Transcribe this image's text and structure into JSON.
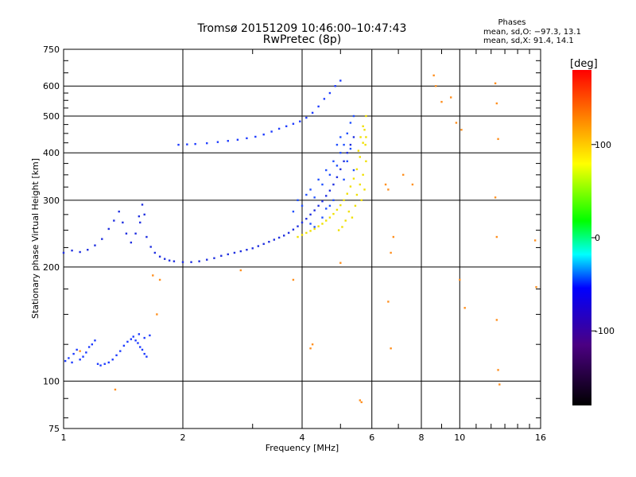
{
  "chart_data": {
    "type": "scatter",
    "title": "Tromsø 20151209 10:46:00–10:47:43",
    "subtitle": "RwPretec (8p)",
    "xlabel": "Frequency [MHz]",
    "ylabel": "Stationary phase Virtual Height [km]",
    "x_scale": "log",
    "y_scale": "log",
    "xlim": [
      1,
      16
    ],
    "ylim": [
      75,
      750
    ],
    "x_ticks": [
      1,
      2,
      4,
      6,
      8,
      10,
      16
    ],
    "y_ticks": [
      75,
      100,
      200,
      300,
      400,
      500,
      600,
      750
    ],
    "grid": true,
    "phases_box": {
      "heading": "Phases",
      "line_o": "mean, sd,O: −97.3, 13.1",
      "line_x": "mean, sd,X:  91.4, 14.1"
    },
    "colorbar": {
      "label": "[deg]",
      "ticks": [
        100,
        0,
        -100
      ],
      "range": [
        -180,
        180
      ],
      "colors": [
        "#000000",
        "#4b0082",
        "#0000ff",
        "#00ffff",
        "#00ff00",
        "#ffff00",
        "#ff8000",
        "#ff0000"
      ]
    },
    "series": [
      {
        "trace": "low-trace",
        "color": "#1e3cff",
        "points": [
          [
            1.01,
            113
          ],
          [
            1.03,
            115
          ],
          [
            1.05,
            112
          ],
          [
            1.06,
            118
          ],
          [
            1.08,
            121
          ],
          [
            1.1,
            114
          ],
          [
            1.12,
            116
          ],
          [
            1.14,
            119
          ],
          [
            1.16,
            123
          ],
          [
            1.18,
            125
          ],
          [
            1.2,
            128
          ],
          [
            1.22,
            111
          ],
          [
            1.24,
            110
          ],
          [
            1.27,
            111
          ],
          [
            1.3,
            112
          ],
          [
            1.33,
            114
          ],
          [
            1.36,
            117
          ],
          [
            1.39,
            120
          ],
          [
            1.42,
            124
          ],
          [
            1.45,
            127
          ],
          [
            1.48,
            129
          ],
          [
            1.5,
            131
          ],
          [
            1.52,
            128
          ],
          [
            1.54,
            126
          ],
          [
            1.56,
            123
          ],
          [
            1.58,
            121
          ],
          [
            1.6,
            118
          ],
          [
            1.62,
            116
          ],
          [
            1.55,
            133
          ],
          [
            1.6,
            130
          ],
          [
            1.65,
            132
          ]
        ]
      },
      {
        "trace": "f-trace",
        "color": "#2030e0",
        "points": [
          [
            1.0,
            218
          ],
          [
            1.05,
            221
          ],
          [
            1.1,
            219
          ],
          [
            1.15,
            222
          ],
          [
            1.2,
            228
          ],
          [
            1.25,
            237
          ],
          [
            1.3,
            252
          ],
          [
            1.34,
            265
          ],
          [
            1.38,
            280
          ],
          [
            1.41,
            262
          ],
          [
            1.44,
            245
          ],
          [
            1.48,
            232
          ],
          [
            1.52,
            245
          ],
          [
            1.56,
            262
          ],
          [
            1.6,
            275
          ],
          [
            1.58,
            292
          ],
          [
            1.55,
            272
          ],
          [
            1.62,
            240
          ],
          [
            1.66,
            226
          ],
          [
            1.7,
            218
          ],
          [
            1.75,
            213
          ],
          [
            1.8,
            210
          ],
          [
            1.85,
            208
          ],
          [
            1.9,
            207
          ],
          [
            2.0,
            206
          ],
          [
            2.1,
            206
          ],
          [
            2.2,
            207
          ],
          [
            2.3,
            209
          ],
          [
            2.4,
            211
          ],
          [
            2.5,
            214
          ],
          [
            2.6,
            216
          ],
          [
            2.7,
            218
          ],
          [
            2.8,
            220
          ],
          [
            2.9,
            222
          ],
          [
            3.0,
            224
          ],
          [
            3.1,
            227
          ],
          [
            3.2,
            230
          ],
          [
            3.3,
            233
          ],
          [
            3.4,
            236
          ],
          [
            3.5,
            239
          ],
          [
            3.6,
            242
          ],
          [
            3.7,
            246
          ],
          [
            3.8,
            251
          ],
          [
            3.9,
            256
          ],
          [
            4.0,
            262
          ],
          [
            4.1,
            268
          ],
          [
            4.2,
            275
          ],
          [
            4.3,
            282
          ],
          [
            4.4,
            290
          ],
          [
            4.5,
            298
          ],
          [
            4.6,
            308
          ],
          [
            4.7,
            318
          ],
          [
            4.8,
            330
          ],
          [
            4.9,
            345
          ],
          [
            5.0,
            362
          ],
          [
            5.1,
            380
          ],
          [
            5.2,
            400
          ],
          [
            5.3,
            420
          ],
          [
            5.4,
            440
          ]
        ]
      },
      {
        "trace": "f-spread",
        "color": "#2050ff",
        "points": [
          [
            3.8,
            280
          ],
          [
            3.9,
            300
          ],
          [
            4.0,
            290
          ],
          [
            4.1,
            310
          ],
          [
            4.2,
            320
          ],
          [
            4.3,
            305
          ],
          [
            4.4,
            340
          ],
          [
            4.5,
            330
          ],
          [
            4.6,
            360
          ],
          [
            4.7,
            350
          ],
          [
            4.8,
            380
          ],
          [
            4.9,
            370
          ],
          [
            5.0,
            400
          ],
          [
            5.1,
            420
          ],
          [
            5.2,
            450
          ],
          [
            5.3,
            480
          ],
          [
            5.4,
            500
          ],
          [
            4.5,
            270
          ],
          [
            4.6,
            285
          ],
          [
            4.2,
            260
          ],
          [
            4.3,
            255
          ],
          [
            4.9,
            420
          ],
          [
            5.0,
            440
          ],
          [
            5.2,
            380
          ],
          [
            5.1,
            340
          ],
          [
            4.8,
            300
          ],
          [
            4.7,
            290
          ],
          [
            5.3,
            410
          ],
          [
            5.4,
            360
          ]
        ]
      },
      {
        "trace": "f-trace-upper",
        "color": "#1e3cff",
        "points": [
          [
            1.95,
            420
          ],
          [
            2.05,
            421
          ],
          [
            2.15,
            422
          ],
          [
            2.3,
            424
          ],
          [
            2.45,
            427
          ],
          [
            2.6,
            430
          ],
          [
            2.75,
            433
          ],
          [
            2.9,
            437
          ],
          [
            3.05,
            441
          ],
          [
            3.2,
            447
          ],
          [
            3.35,
            455
          ],
          [
            3.5,
            463
          ],
          [
            3.65,
            470
          ],
          [
            3.8,
            477
          ],
          [
            3.95,
            484
          ],
          [
            4.1,
            495
          ],
          [
            4.25,
            510
          ],
          [
            4.4,
            530
          ],
          [
            4.55,
            555
          ],
          [
            4.7,
            575
          ],
          [
            4.85,
            600
          ],
          [
            5.0,
            620
          ]
        ]
      },
      {
        "trace": "x-trace",
        "color": "#f0e000",
        "points": [
          [
            3.9,
            240
          ],
          [
            4.0,
            243
          ],
          [
            4.1,
            246
          ],
          [
            4.2,
            249
          ],
          [
            4.3,
            252
          ],
          [
            4.4,
            256
          ],
          [
            4.5,
            260
          ],
          [
            4.6,
            265
          ],
          [
            4.7,
            270
          ],
          [
            4.8,
            276
          ],
          [
            4.9,
            283
          ],
          [
            5.0,
            291
          ],
          [
            5.1,
            300
          ],
          [
            5.2,
            312
          ],
          [
            5.3,
            326
          ],
          [
            5.4,
            342
          ],
          [
            5.5,
            362
          ],
          [
            5.6,
            390
          ],
          [
            5.7,
            425
          ],
          [
            5.75,
            460
          ],
          [
            5.8,
            500
          ],
          [
            5.5,
            310
          ],
          [
            5.6,
            330
          ],
          [
            5.7,
            350
          ],
          [
            5.8,
            380
          ],
          [
            5.65,
            300
          ],
          [
            5.75,
            320
          ],
          [
            5.45,
            290
          ],
          [
            5.35,
            270
          ],
          [
            5.25,
            280
          ],
          [
            5.15,
            265
          ],
          [
            5.05,
            255
          ],
          [
            4.95,
            250
          ],
          [
            5.55,
            405
          ],
          [
            5.62,
            440
          ],
          [
            5.7,
            470
          ],
          [
            5.78,
            420
          ],
          [
            5.8,
            440
          ]
        ]
      },
      {
        "trace": "scatter-mixed",
        "color": "#ff9020",
        "points": [
          [
            6.5,
            330
          ],
          [
            6.6,
            320
          ],
          [
            6.7,
            218
          ],
          [
            6.8,
            240
          ],
          [
            7.2,
            350
          ],
          [
            7.6,
            330
          ],
          [
            8.6,
            640
          ],
          [
            8.7,
            600
          ],
          [
            9.0,
            545
          ],
          [
            9.5,
            560
          ],
          [
            9.8,
            480
          ],
          [
            10.1,
            460
          ],
          [
            12.3,
            610
          ],
          [
            12.4,
            540
          ],
          [
            12.5,
            435
          ],
          [
            12.3,
            305
          ],
          [
            12.4,
            240
          ],
          [
            10.0,
            185
          ],
          [
            10.3,
            156
          ],
          [
            12.4,
            145
          ],
          [
            12.5,
            107
          ],
          [
            12.6,
            98
          ],
          [
            15.5,
            235
          ],
          [
            15.6,
            177
          ],
          [
            6.6,
            162
          ],
          [
            6.7,
            122
          ],
          [
            5.6,
            89
          ],
          [
            5.65,
            88
          ],
          [
            4.2,
            122
          ],
          [
            4.25,
            125
          ],
          [
            5.0,
            205
          ],
          [
            3.8,
            185
          ],
          [
            2.8,
            196
          ],
          [
            1.72,
            150
          ],
          [
            1.68,
            190
          ],
          [
            1.75,
            185
          ],
          [
            1.35,
            95
          ],
          [
            1.1,
            120
          ]
        ]
      }
    ]
  }
}
